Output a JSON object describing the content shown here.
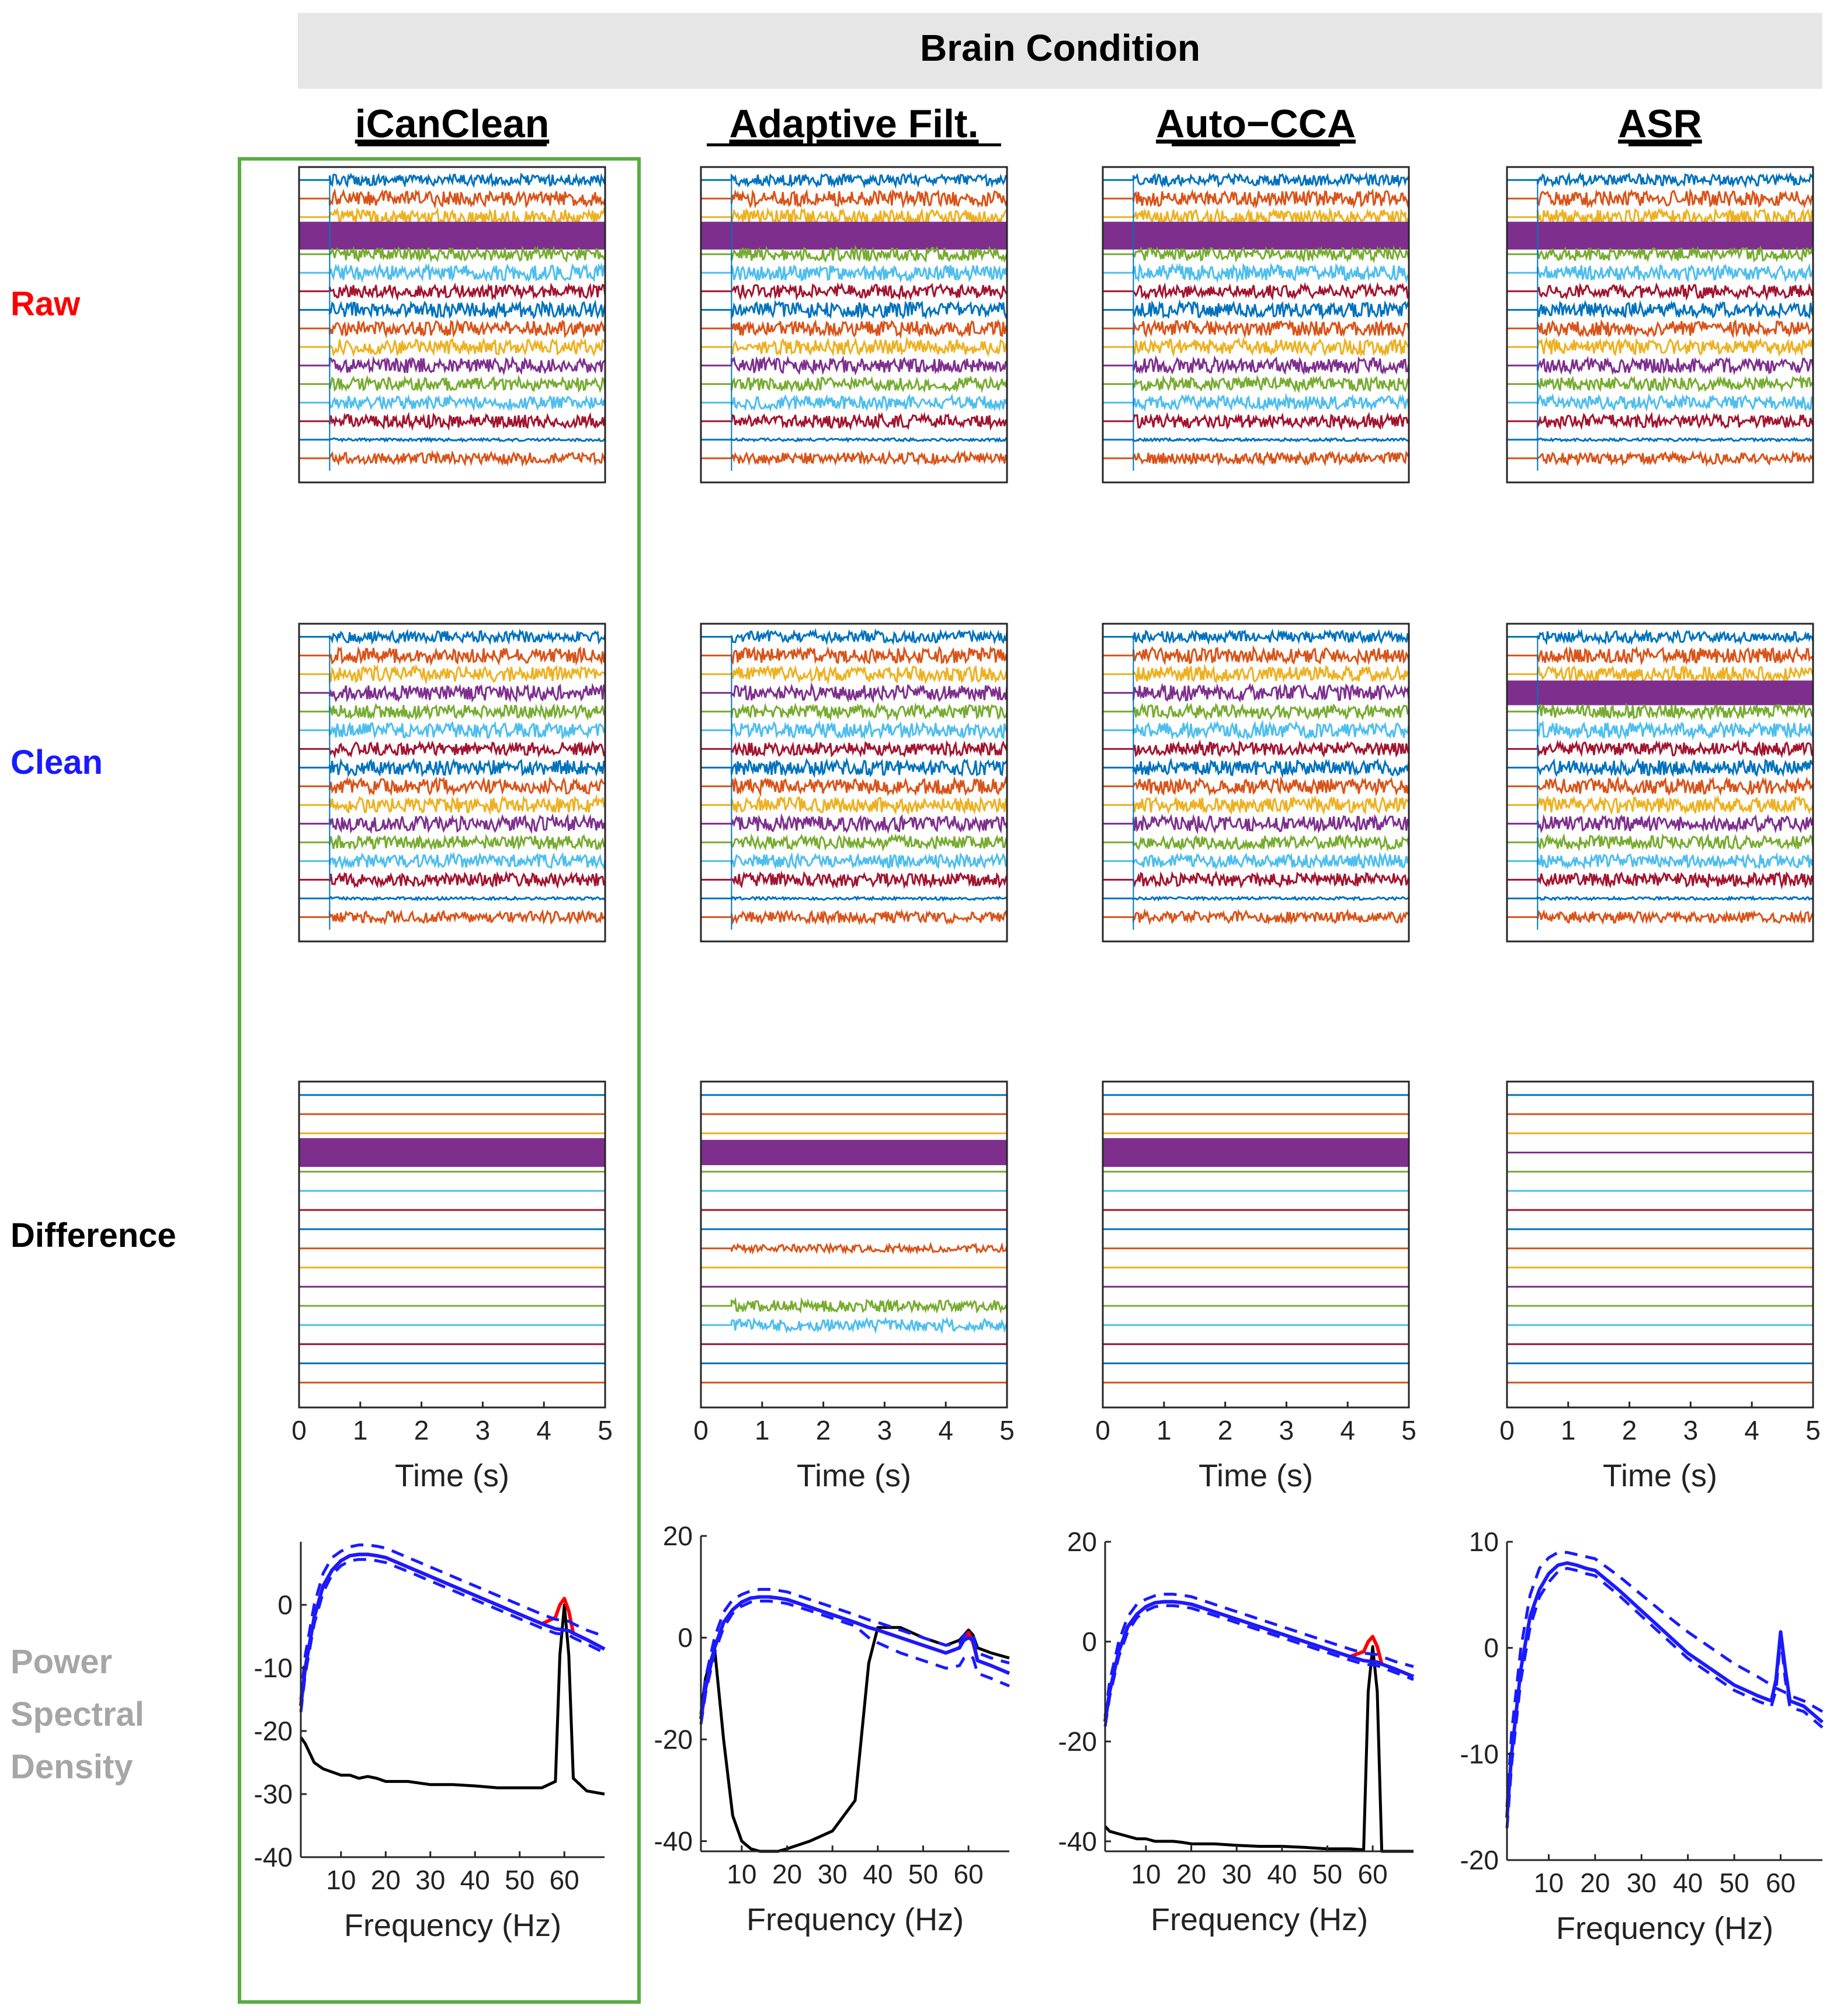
{
  "header": {
    "banner": "Brain Condition"
  },
  "methods": [
    "iCanClean",
    "Adaptive Filt.",
    "Auto−CCA",
    "ASR"
  ],
  "highlighted_method": "iCanClean",
  "row_labels": [
    {
      "text": "Raw",
      "color": "#ff0000"
    },
    {
      "text": "Clean",
      "color": "#1a1aff"
    },
    {
      "text": "Difference",
      "color": "#000000"
    },
    {
      "text": [
        "Power",
        "Spectral",
        "Density"
      ],
      "color": "#a6a6a6"
    }
  ],
  "colors": {
    "banner_bg": "#e6e6e6",
    "highlight_box": "#5aac44",
    "psd_raw": "#ff0000",
    "psd_clean": "#1a1aff",
    "psd_diff": "#000000",
    "channels": [
      "#0072bd",
      "#d95319",
      "#edb120",
      "#7e2f8e",
      "#77ac30",
      "#4dbeee",
      "#a2142f",
      "#0072bd",
      "#d95319",
      "#edb120",
      "#7e2f8e",
      "#77ac30",
      "#4dbeee",
      "#a2142f",
      "#0072bd",
      "#d95319"
    ]
  },
  "chart_data": [
    {
      "type": "line",
      "subtype": "multichannel-timeseries",
      "rows": [
        "Raw",
        "Clean",
        "Difference"
      ],
      "xlabel": "Time (s)",
      "xlim": [
        0,
        5
      ],
      "xticks": [
        0,
        1,
        2,
        3,
        4,
        5
      ],
      "n_channels": 16,
      "signal_onset_s": 0.5,
      "large_artifact_channel": 4,
      "panels": {
        "iCanClean": {
          "Raw": {
            "amplitude": [
              0.6,
              0.8,
              0.8,
              2.5,
              0.7,
              0.8,
              0.7,
              0.8,
              0.8,
              0.8,
              0.8,
              0.7,
              0.7,
              0.7,
              0.15,
              0.6
            ]
          },
          "Clean": {
            "amplitude": [
              0.6,
              0.8,
              0.8,
              0.8,
              0.7,
              0.8,
              0.7,
              0.8,
              0.8,
              0.8,
              0.8,
              0.7,
              0.7,
              0.7,
              0.15,
              0.6
            ]
          },
          "Difference": {
            "amplitude": [
              0.05,
              0.05,
              0.05,
              2.5,
              0.05,
              0.05,
              0.05,
              0.05,
              0.05,
              0.05,
              0.05,
              0.05,
              0.05,
              0.05,
              0.05,
              0.05
            ]
          }
        },
        "Adaptive Filt.": {
          "Raw": {
            "amplitude": [
              0.6,
              0.8,
              0.8,
              2.5,
              0.7,
              0.8,
              0.7,
              0.8,
              0.8,
              0.8,
              0.8,
              0.7,
              0.7,
              0.7,
              0.15,
              0.6
            ]
          },
          "Clean": {
            "amplitude": [
              0.6,
              0.8,
              0.8,
              0.8,
              0.7,
              0.8,
              0.7,
              0.8,
              0.8,
              0.8,
              0.8,
              0.7,
              0.7,
              0.7,
              0.15,
              0.6
            ]
          },
          "Difference": {
            "amplitude": [
              0.05,
              0.05,
              0.05,
              2.2,
              0.05,
              0.05,
              0.05,
              0.05,
              0.4,
              0.05,
              0.05,
              0.6,
              0.6,
              0.05,
              0.05,
              0.05
            ]
          }
        },
        "Auto−CCA": {
          "Raw": {
            "amplitude": [
              0.6,
              0.8,
              0.8,
              2.5,
              0.7,
              0.8,
              0.7,
              0.8,
              0.8,
              0.8,
              0.8,
              0.7,
              0.7,
              0.7,
              0.15,
              0.6
            ]
          },
          "Clean": {
            "amplitude": [
              0.6,
              0.8,
              0.8,
              0.8,
              0.7,
              0.8,
              0.7,
              0.8,
              0.8,
              0.8,
              0.8,
              0.7,
              0.7,
              0.7,
              0.15,
              0.6
            ]
          },
          "Difference": {
            "amplitude": [
              0.05,
              0.05,
              0.05,
              2.5,
              0.05,
              0.05,
              0.05,
              0.05,
              0.05,
              0.05,
              0.05,
              0.05,
              0.05,
              0.05,
              0.05,
              0.05
            ]
          }
        },
        "ASR": {
          "Raw": {
            "amplitude": [
              0.6,
              0.8,
              0.8,
              2.5,
              0.7,
              0.8,
              0.7,
              0.8,
              0.8,
              0.8,
              0.8,
              0.7,
              0.7,
              0.7,
              0.15,
              0.6
            ]
          },
          "Clean": {
            "amplitude": [
              0.6,
              0.8,
              0.8,
              2.2,
              0.7,
              0.8,
              0.7,
              0.8,
              0.8,
              0.8,
              0.8,
              0.7,
              0.7,
              0.7,
              0.15,
              0.6
            ]
          },
          "Difference": {
            "amplitude": [
              0.03,
              0.03,
              0.03,
              0.03,
              0.03,
              0.03,
              0.03,
              0.03,
              0.03,
              0.03,
              0.03,
              0.03,
              0.03,
              0.03,
              0.03,
              0.03
            ]
          }
        }
      }
    },
    {
      "type": "line",
      "subtype": "power-spectral-density",
      "xlabel": "Frequency (Hz)",
      "xlim": [
        1,
        69
      ],
      "xticks": [
        10,
        20,
        30,
        40,
        50,
        60
      ],
      "series_legend": {
        "Raw": "red",
        "Clean": "blue (solid = mean, dashed = bounds)",
        "Difference": "black"
      },
      "panels": {
        "iCanClean": {
          "ylim": [
            -40,
            10
          ],
          "yticks": [
            -40,
            -30,
            -20,
            -10,
            0
          ],
          "x": [
            1,
            2,
            4,
            6,
            8,
            10,
            12,
            14,
            16,
            18,
            20,
            25,
            30,
            35,
            40,
            45,
            50,
            55,
            58,
            59,
            60,
            61,
            62,
            65,
            69
          ],
          "raw": [
            -16,
            -10,
            -2,
            3,
            5.5,
            7,
            7.8,
            8,
            8,
            7.8,
            7.5,
            6,
            4.5,
            3,
            1.5,
            0,
            -1.5,
            -3,
            -2,
            0,
            1,
            -1,
            -4.5,
            -5.5,
            -7
          ],
          "clean": [
            -16,
            -10,
            -2,
            3,
            5.5,
            7,
            7.8,
            8,
            8,
            7.8,
            7.5,
            6,
            4.5,
            3,
            1.5,
            0,
            -1.5,
            -3,
            -3.8,
            -3.9,
            -4,
            -4.1,
            -4.5,
            -5.5,
            -7
          ],
          "clean_upper": [
            -15,
            -8,
            0,
            5,
            7.5,
            8.5,
            9.2,
            9.5,
            9.5,
            9.3,
            9,
            7.5,
            6,
            4.5,
            3,
            1.5,
            0,
            -1.5,
            -2.3,
            -2.4,
            -2.5,
            -2.6,
            -3,
            -4,
            -5
          ],
          "clean_lower": [
            -17,
            -11,
            -3,
            2,
            4.8,
            6.2,
            7,
            7.2,
            7.2,
            7,
            6.7,
            5.3,
            3.8,
            2.3,
            0.8,
            -0.7,
            -2.2,
            -3.7,
            -4.5,
            -4.6,
            -4.7,
            -4.8,
            -5.2,
            -6.2,
            -7.6
          ],
          "diff": [
            -21,
            -22,
            -25,
            -26,
            -26.5,
            -27,
            -27,
            -27.5,
            -27.2,
            -27.5,
            -28,
            -28,
            -28.5,
            -28.5,
            -28.7,
            -29,
            -29,
            -29,
            -28,
            -8,
            0,
            -8,
            -27.5,
            -29.5,
            -30
          ]
        },
        "Adaptive Filt.": {
          "ylim": [
            -42,
            20
          ],
          "yticks": [
            -40,
            -20,
            0,
            20
          ],
          "x": [
            1,
            2,
            4,
            6,
            8,
            10,
            12,
            14,
            16,
            18,
            20,
            25,
            30,
            35,
            38,
            40,
            45,
            50,
            55,
            58,
            59,
            60,
            61,
            62,
            65,
            69
          ],
          "raw": [
            -16,
            -10,
            -2,
            3,
            5.5,
            7,
            7.8,
            8,
            8,
            7.8,
            7.5,
            6,
            4.5,
            3,
            2,
            1.5,
            0,
            -1.5,
            -3,
            -2,
            0,
            1,
            -1,
            -4.5,
            -5.5,
            -7
          ],
          "clean": [
            -16,
            -10,
            -2,
            3,
            5.5,
            7,
            7.8,
            8,
            8,
            7.8,
            7.5,
            6,
            4.5,
            3,
            2,
            1.5,
            0,
            -1.5,
            -3,
            -2,
            -0.5,
            0,
            -0.5,
            -4.5,
            -5.5,
            -7
          ],
          "clean_upper": [
            -15,
            -8,
            0,
            5,
            7.5,
            8.5,
            9.2,
            9.5,
            9.5,
            9.3,
            9,
            7.5,
            6,
            4.5,
            3.5,
            3,
            1.5,
            0,
            -1.5,
            -1,
            0.5,
            1,
            0.5,
            -3,
            -4,
            -5
          ],
          "clean_lower": [
            -17,
            -11,
            -3,
            2,
            4.8,
            6.2,
            7,
            7.2,
            7.2,
            7,
            6.7,
            5.3,
            3.8,
            2.3,
            0,
            -1,
            -3,
            -4.5,
            -6,
            -5.5,
            -4,
            -3.5,
            -4,
            -7,
            -8,
            -9.5
          ],
          "diff": [
            -15,
            -8,
            -2,
            -20,
            -35,
            -40,
            -41.5,
            -42,
            -42,
            -42,
            -41.5,
            -40,
            -38,
            -32,
            -5,
            2,
            2,
            0,
            -1.5,
            -0.5,
            0.5,
            1.5,
            0.5,
            -2,
            -3,
            -4
          ]
        },
        "Auto−CCA": {
          "ylim": [
            -42,
            20
          ],
          "yticks": [
            -40,
            -20,
            0,
            20
          ],
          "x": [
            1,
            2,
            4,
            6,
            8,
            10,
            12,
            14,
            16,
            18,
            20,
            25,
            30,
            35,
            40,
            45,
            50,
            55,
            58,
            59,
            60,
            61,
            62,
            65,
            69
          ],
          "raw": [
            -16,
            -10,
            -2,
            3,
            5.5,
            7,
            7.8,
            8,
            8,
            7.8,
            7.5,
            6,
            4.5,
            3,
            1.5,
            0,
            -1.5,
            -3,
            -2,
            0,
            1,
            -1,
            -4.5,
            -5.5,
            -7
          ],
          "clean": [
            -16,
            -10,
            -2,
            3,
            5.5,
            7,
            7.8,
            8,
            8,
            7.8,
            7.5,
            6,
            4.5,
            3,
            1.5,
            0,
            -1.5,
            -3,
            -3.8,
            -3.9,
            -4,
            -4.1,
            -4.5,
            -5.5,
            -7
          ],
          "clean_upper": [
            -15,
            -8,
            0,
            5,
            7.5,
            8.5,
            9.2,
            9.5,
            9.5,
            9.3,
            9,
            7.5,
            6,
            4.5,
            3,
            1.5,
            0,
            -1.5,
            -2.3,
            -2.4,
            -2.5,
            -2.6,
            -3,
            -4,
            -5
          ],
          "clean_lower": [
            -17,
            -11,
            -3,
            2,
            4.8,
            6.2,
            7,
            7.2,
            7.2,
            7,
            6.7,
            5.3,
            3.8,
            2.3,
            0.8,
            -0.7,
            -2.2,
            -3.7,
            -4.5,
            -4.6,
            -4.7,
            -4.8,
            -5.2,
            -6.2,
            -7.6
          ],
          "diff": [
            -37,
            -38,
            -38.5,
            -39,
            -39.5,
            -39.5,
            -40,
            -40,
            -40,
            -40.2,
            -40.5,
            -40.5,
            -40.8,
            -41,
            -41,
            -41.2,
            -41.5,
            -41.5,
            -41.7,
            -10,
            -1,
            -10,
            -42,
            -42.2,
            -42.5
          ]
        },
        "ASR": {
          "ylim": [
            -20,
            10
          ],
          "yticks": [
            -20,
            -10,
            0,
            10
          ],
          "x": [
            1,
            2,
            4,
            6,
            8,
            10,
            12,
            14,
            16,
            18,
            20,
            25,
            30,
            35,
            40,
            45,
            50,
            55,
            58,
            59,
            60,
            61,
            62,
            65,
            69
          ],
          "clean": [
            -16,
            -10,
            -2,
            3,
            5.5,
            7,
            7.8,
            8,
            7.8,
            7.5,
            7.3,
            5.5,
            3.5,
            1.5,
            -0.5,
            -2,
            -3.5,
            -4.5,
            -5,
            -3,
            1.5,
            -2,
            -5,
            -5.5,
            -7
          ],
          "clean_upper": [
            -15,
            -8,
            0,
            5,
            7.5,
            8.5,
            9,
            9,
            8.8,
            8.6,
            8.4,
            6.8,
            5,
            3.2,
            1.5,
            0,
            -1.5,
            -2.7,
            -3.5,
            -3.8,
            -4,
            -4.2,
            -4.5,
            -5,
            -6
          ],
          "clean_lower": [
            -17,
            -11,
            -3,
            2,
            4.8,
            6.2,
            7.2,
            7.5,
            7.3,
            7,
            6.8,
            5,
            3,
            1,
            -1,
            -2.5,
            -4,
            -5,
            -5.5,
            -4,
            1,
            -3,
            -5.6,
            -6,
            -7.5
          ]
        }
      }
    }
  ]
}
